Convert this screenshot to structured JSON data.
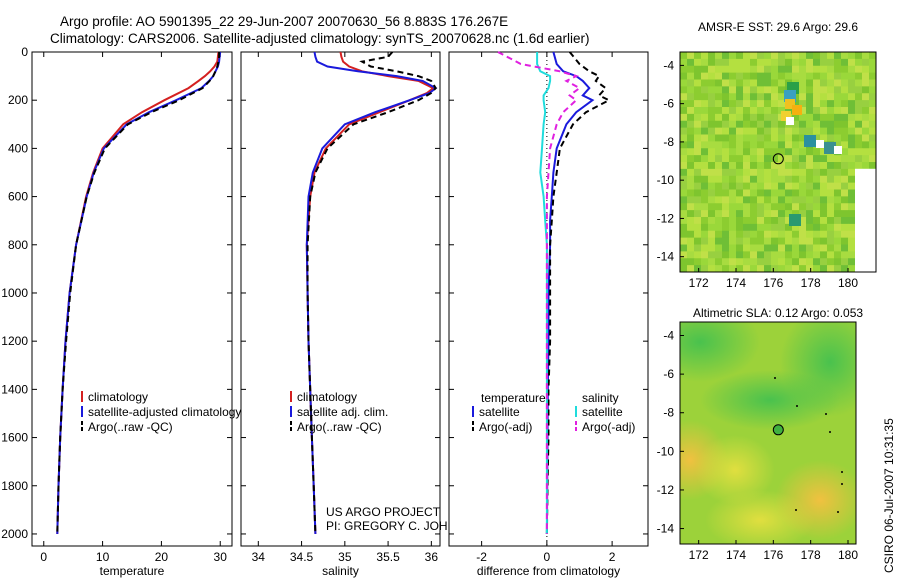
{
  "header": {
    "title_line1": "Argo profile: AO 5901395_22 29-Jun-2007 20070630_56 8.883S 176.267E",
    "title_line2": "Climatology: CARS2006. Satellite-adjusted climatology: synTS_20070628.nc (1.6d earlier)"
  },
  "colors": {
    "climatology": "#d42020",
    "satellite": "#1a1adc",
    "argo": "#000000",
    "salinity_satellite": "#20dcdc",
    "salinity_argo": "#e020e0"
  },
  "chart_data": [
    {
      "id": "temperature",
      "type": "line",
      "xlabel": "temperature",
      "ylabel": "",
      "xlim": [
        -2,
        32
      ],
      "ylim": [
        2050,
        0
      ],
      "xticks": [
        "0",
        "10",
        "20",
        "30"
      ],
      "yticks": [
        "0",
        "200",
        "400",
        "600",
        "800",
        "1000",
        "1200",
        "1400",
        "1600",
        "1800",
        "2000"
      ],
      "y": [
        0,
        20,
        40,
        60,
        80,
        100,
        120,
        150,
        200,
        250,
        300,
        400,
        500,
        600,
        800,
        1000,
        1200,
        1400,
        1600,
        1800,
        2000
      ],
      "series": [
        {
          "name": "climatology",
          "style": "solid",
          "values": [
            29.7,
            29.6,
            29.5,
            29.0,
            28.3,
            27.4,
            26.3,
            24.6,
            20.5,
            16.7,
            13.5,
            10.0,
            8.4,
            7.2,
            5.5,
            4.4,
            3.7,
            3.2,
            2.8,
            2.5,
            2.3
          ]
        },
        {
          "name": "satellite-adjusted climatology",
          "style": "solid",
          "values": [
            30.0,
            29.9,
            29.8,
            29.6,
            29.2,
            28.8,
            28.1,
            26.8,
            22.5,
            17.9,
            14.1,
            10.2,
            8.5,
            7.3,
            5.5,
            4.4,
            3.7,
            3.2,
            2.8,
            2.5,
            2.3
          ]
        },
        {
          "name": "Argo(..raw -QC)",
          "style": "dashed",
          "values": [
            29.8,
            29.8,
            29.7,
            29.5,
            29.2,
            28.8,
            28.2,
            27.0,
            23.0,
            18.3,
            14.3,
            10.4,
            8.6,
            7.3,
            5.5,
            4.5,
            3.8,
            3.2,
            2.8,
            2.5,
            2.3
          ]
        }
      ],
      "legend": [
        "climatology",
        "satellite-adjusted climatology",
        "Argo(..raw -QC)"
      ]
    },
    {
      "id": "salinity",
      "type": "line",
      "xlabel": "salinity",
      "xlim": [
        33.8,
        36.1
      ],
      "ylim": [
        2050,
        0
      ],
      "xticks": [
        "34",
        "34.5",
        "35",
        "35.5",
        "36"
      ],
      "y": [
        0,
        20,
        40,
        60,
        80,
        100,
        120,
        150,
        170,
        200,
        250,
        300,
        400,
        500,
        600,
        800,
        1000,
        1200,
        1400,
        1600,
        1800,
        2000
      ],
      "series": [
        {
          "name": "climatology",
          "style": "solid",
          "values": [
            34.95,
            34.96,
            34.98,
            35.05,
            35.2,
            35.5,
            35.85,
            36.02,
            35.95,
            35.75,
            35.4,
            35.05,
            34.78,
            34.65,
            34.6,
            34.56,
            34.57,
            34.58,
            34.6,
            34.62,
            34.64,
            34.66
          ]
        },
        {
          "name": "satellite adj. clim.",
          "style": "solid",
          "values": [
            34.65,
            34.66,
            34.68,
            34.8,
            35.15,
            35.6,
            35.9,
            36.05,
            35.98,
            35.75,
            35.35,
            35.0,
            34.74,
            34.63,
            34.58,
            34.56,
            34.57,
            34.58,
            34.6,
            34.62,
            34.64,
            34.66
          ]
        },
        {
          "name": "Argo(..raw -QC)",
          "style": "dashed",
          "values": [
            35.55,
            35.5,
            35.2,
            35.3,
            35.6,
            35.85,
            36.0,
            36.05,
            36.0,
            35.85,
            35.5,
            35.1,
            34.8,
            34.66,
            34.6,
            34.57,
            34.57,
            34.58,
            34.6,
            34.62,
            34.64,
            34.66
          ]
        }
      ],
      "legend": [
        "climatology",
        "satellite adj. clim.",
        "Argo(..raw -QC)"
      ],
      "annotation_lines": [
        "US ARGO PROJECT",
        "PI: GREGORY C. JOHNSON"
      ]
    },
    {
      "id": "difference",
      "type": "line",
      "xlabel": "difference from climatology",
      "xlim": [
        -3,
        3.1
      ],
      "ylim": [
        2050,
        0
      ],
      "xticks": [
        "-2",
        "0",
        "2"
      ],
      "y": [
        0,
        50,
        80,
        100,
        120,
        150,
        180,
        200,
        250,
        300,
        400,
        500,
        600,
        700,
        800,
        1000,
        1200,
        1400,
        1600,
        1800,
        2000
      ],
      "series": [
        {
          "name": "temperature satellite",
          "group": "temperature",
          "style": "solid",
          "values": [
            0.2,
            0.3,
            0.5,
            0.9,
            1.1,
            1.3,
            1.1,
            1.4,
            0.9,
            0.6,
            0.3,
            0.2,
            0.15,
            0.1,
            0.1,
            0.05,
            0.05,
            0.03,
            0.02,
            0.01,
            0.0
          ]
        },
        {
          "name": "temperature Argo(-adj)",
          "group": "temperature",
          "style": "dashed",
          "values": [
            0.7,
            1.0,
            1.3,
            1.6,
            1.5,
            1.8,
            1.6,
            1.9,
            1.2,
            0.8,
            0.4,
            0.3,
            0.2,
            0.15,
            0.1,
            0.1,
            0.1,
            0.05,
            0.05,
            0.02,
            0.0
          ]
        },
        {
          "name": "salinity satellite",
          "group": "salinity",
          "style": "solid",
          "values": [
            -0.3,
            -0.3,
            -0.2,
            0.1,
            0.1,
            0.05,
            -0.1,
            -0.1,
            -0.05,
            -0.1,
            -0.15,
            -0.2,
            -0.1,
            -0.05,
            0.0,
            0.0,
            0.0,
            0.0,
            0.0,
            0.0,
            0.0
          ]
        },
        {
          "name": "salinity Argo(-adj)",
          "group": "salinity",
          "style": "dashed",
          "values": [
            -1.5,
            -0.8,
            0.4,
            0.9,
            0.6,
            1.0,
            0.7,
            0.9,
            0.5,
            0.3,
            0.1,
            0.05,
            0.0,
            0.0,
            0.0,
            0.0,
            0.0,
            0.0,
            0.0,
            0.0,
            0.0
          ]
        }
      ],
      "legend_headers": [
        "temperature",
        "salinity"
      ],
      "legend_left": [
        "satellite",
        "Argo(-adj)"
      ],
      "legend_right": [
        "satellite",
        "Argo(-adj)"
      ]
    },
    {
      "id": "sst_map",
      "type": "heatmap",
      "title": "AMSR-E SST: 29.6 Argo: 29.6",
      "xlim": [
        171,
        181.5
      ],
      "ylim": [
        -14.8,
        -3.3
      ],
      "xticks": [
        "172",
        "174",
        "176",
        "178",
        "180"
      ],
      "yticks": [
        "-4",
        "-6",
        "-8",
        "-10",
        "-12",
        "-14"
      ],
      "float_position": {
        "lon": 176.267,
        "lat": -8.883
      }
    },
    {
      "id": "sla_map",
      "type": "heatmap",
      "title": "Altimetric SLA: 0.12 Argo: 0.053",
      "xlim": [
        171,
        181.5
      ],
      "ylim": [
        -14.8,
        -3.3
      ],
      "xticks": [
        "172",
        "174",
        "176",
        "178",
        "180"
      ],
      "yticks": [
        "-4",
        "-6",
        "-8",
        "-10",
        "-12",
        "-14"
      ],
      "float_position": {
        "lon": 176.267,
        "lat": -8.883
      }
    }
  ],
  "footer": {
    "side_label": "CSIRO 06-Jul-2007 10:31:35"
  }
}
